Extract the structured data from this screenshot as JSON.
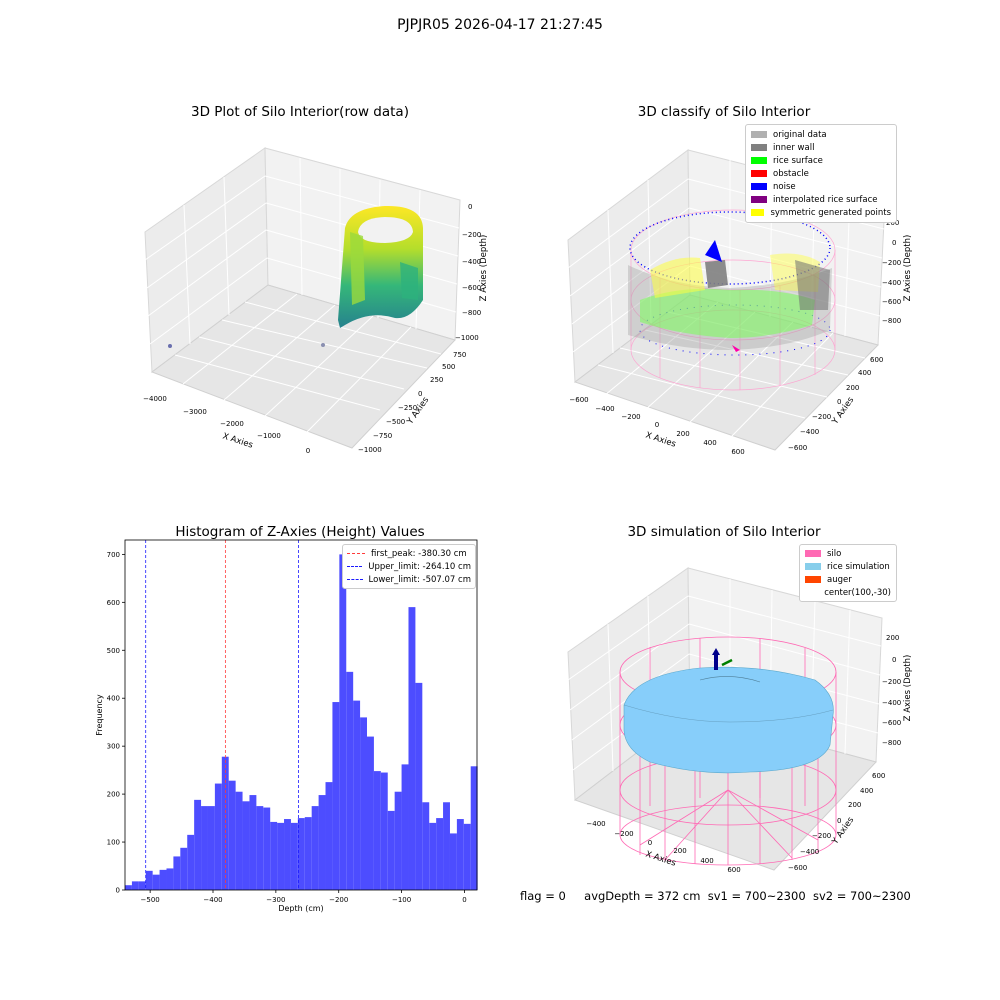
{
  "header": {
    "title": "PJPJR05 2026-04-17 21:27:45"
  },
  "status": {
    "flag": "flag = 0",
    "avg_depth": "avgDepth = 372 cm",
    "sv1": "sv1 = 700~2300",
    "sv2": "sv2 = 700~2300"
  },
  "colors": {
    "histogram_bar": "#4d4dff",
    "first_peak": "#ff3b3b",
    "limits": "#1a1aff",
    "silo_wire": "#ff69b4",
    "rice_sim": "#87cefa"
  },
  "chart_data": [
    {
      "type": "scatter",
      "projection": "3d",
      "title": "3D Plot of Silo Interior(row data)",
      "xlabel": "X Axies",
      "ylabel": "Y Axies",
      "zlabel": "Z Axies (Depth)",
      "x_ticks": [
        "−4000",
        "−3000",
        "−2000",
        "−1000",
        "0"
      ],
      "y_ticks": [
        "750",
        "500",
        "250",
        "0",
        "−250",
        "−500",
        "−750",
        "−1000"
      ],
      "z_ticks": [
        "0",
        "−200",
        "−400",
        "−600",
        "−800",
        "−1000"
      ],
      "grid": true,
      "colormap": "viridis"
    },
    {
      "type": "scatter",
      "projection": "3d",
      "title": "3D classify of Silo Interior",
      "xlabel": "X Axies",
      "ylabel": "Y Axies",
      "zlabel": "Z Axies (Depth)",
      "x_ticks": [
        "−600",
        "−400",
        "−200",
        "0",
        "200",
        "400",
        "600"
      ],
      "y_ticks": [
        "600",
        "400",
        "200",
        "0",
        "−200",
        "−400",
        "−600"
      ],
      "z_ticks": [
        "200",
        "0",
        "−200",
        "−400",
        "−600",
        "−800"
      ],
      "legend_position": "top-right",
      "legend": [
        {
          "label": "original data",
          "color": "#b0b0b0"
        },
        {
          "label": "inner wall",
          "color": "#808080"
        },
        {
          "label": "rice surface",
          "color": "#00ff00"
        },
        {
          "label": "obstacle",
          "color": "#ff0000"
        },
        {
          "label": "noise",
          "color": "#0000ff"
        },
        {
          "label": "interpolated rice surface",
          "color": "#800080"
        },
        {
          "label": "symmetric generated points",
          "color": "#ffff00"
        }
      ],
      "grid": true
    },
    {
      "type": "bar",
      "title": "Histogram of Z-Axies (Height) Values",
      "xlabel": "Depth (cm)",
      "ylabel": "Frequency",
      "xlim": [
        -540,
        20
      ],
      "ylim": [
        0,
        730
      ],
      "x_ticks": [
        -500,
        -400,
        -300,
        -200,
        -100,
        0
      ],
      "y_ticks": [
        0,
        100,
        200,
        300,
        400,
        500,
        600,
        700
      ],
      "bin_width": 11,
      "bin_start": -540,
      "values": [
        10,
        18,
        18,
        40,
        32,
        42,
        45,
        70,
        88,
        115,
        188,
        175,
        175,
        222,
        278,
        228,
        205,
        185,
        198,
        175,
        172,
        142,
        140,
        148,
        140,
        150,
        152,
        175,
        198,
        225,
        392,
        700,
        455,
        395,
        360,
        320,
        248,
        245,
        165,
        205,
        262,
        590,
        432,
        183,
        140,
        150,
        183,
        118,
        148,
        138,
        258
      ],
      "vlines": [
        {
          "label": "first_peak: -380.30 cm",
          "x": -380.3,
          "color": "#ff3b3b"
        },
        {
          "label": "Upper_limit: -264.10 cm",
          "x": -264.1,
          "color": "#1a1aff"
        },
        {
          "label": "Lower_limit: -507.07 cm",
          "x": -507.07,
          "color": "#1a1aff"
        }
      ],
      "legend_position": "top-right"
    },
    {
      "type": "area",
      "projection": "3d",
      "title": "3D simulation of Silo Interior",
      "xlabel": "X Axies",
      "ylabel": "Y Axies",
      "zlabel": "Z Axies (Depth)",
      "x_ticks": [
        "−400",
        "−200",
        "0",
        "200",
        "400",
        "600"
      ],
      "y_ticks": [
        "600",
        "400",
        "200",
        "0",
        "−200",
        "−400",
        "−600"
      ],
      "z_ticks": [
        "200",
        "0",
        "−200",
        "−400",
        "−600",
        "−800"
      ],
      "legend_position": "top-right",
      "legend": [
        {
          "label": "silo",
          "color": "#ff69b4"
        },
        {
          "label": "rice simulation",
          "color": "#87ceeb"
        },
        {
          "label": "auger",
          "color": "#ff4500"
        },
        {
          "label": "center(100,-30)",
          "color": ""
        }
      ],
      "grid": true
    }
  ]
}
